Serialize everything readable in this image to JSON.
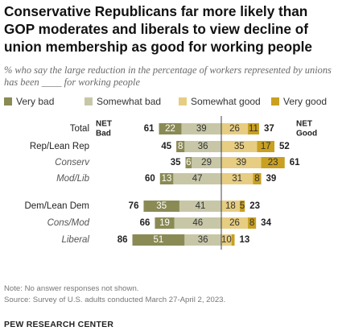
{
  "header": {
    "title": "Conservative Republicans far more likely than GOP moderates and liberals to view decline of union membership as good for working people",
    "subtitle": "% who say the large reduction in the percentage of workers represented by unions has been ____ for working people"
  },
  "legend": [
    {
      "label": "Very bad",
      "color": "#8a8a55"
    },
    {
      "label": "Somewhat bad",
      "color": "#c7c7a8"
    },
    {
      "label": "Somewhat good",
      "color": "#e6cd82"
    },
    {
      "label": "Very good",
      "color": "#c9a020"
    }
  ],
  "net_labels": {
    "bad": [
      "NET",
      "Bad"
    ],
    "good": [
      "NET",
      "Good"
    ]
  },
  "chart_data": {
    "type": "bar",
    "stacked": "diverging",
    "categories": [
      "Total",
      "Rep/Lean Rep",
      "Conserv",
      "Mod/Lib",
      "Dem/Lean Dem",
      "Cons/Mod",
      "Liberal"
    ],
    "category_italic": [
      false,
      false,
      true,
      true,
      false,
      true,
      true
    ],
    "series": [
      {
        "name": "Very bad",
        "values": [
          22,
          8,
          6,
          13,
          35,
          19,
          51
        ]
      },
      {
        "name": "Somewhat bad",
        "values": [
          39,
          36,
          29,
          47,
          41,
          46,
          36
        ]
      },
      {
        "name": "Somewhat good",
        "values": [
          26,
          35,
          39,
          31,
          18,
          26,
          10
        ]
      },
      {
        "name": "Very good",
        "values": [
          11,
          17,
          23,
          8,
          5,
          8,
          3
        ]
      }
    ],
    "net_bad": [
      61,
      45,
      35,
      60,
      76,
      66,
      86
    ],
    "net_good": [
      37,
      52,
      61,
      39,
      23,
      34,
      13
    ],
    "value_labels_shown_good_very": [
      true,
      true,
      true,
      true,
      true,
      true,
      false
    ]
  },
  "footer": {
    "note": "Note: No answer responses not shown.",
    "source": "Source: Survey of U.S. adults conducted March 27-April 2, 2023.",
    "brand": "PEW RESEARCH CENTER"
  }
}
